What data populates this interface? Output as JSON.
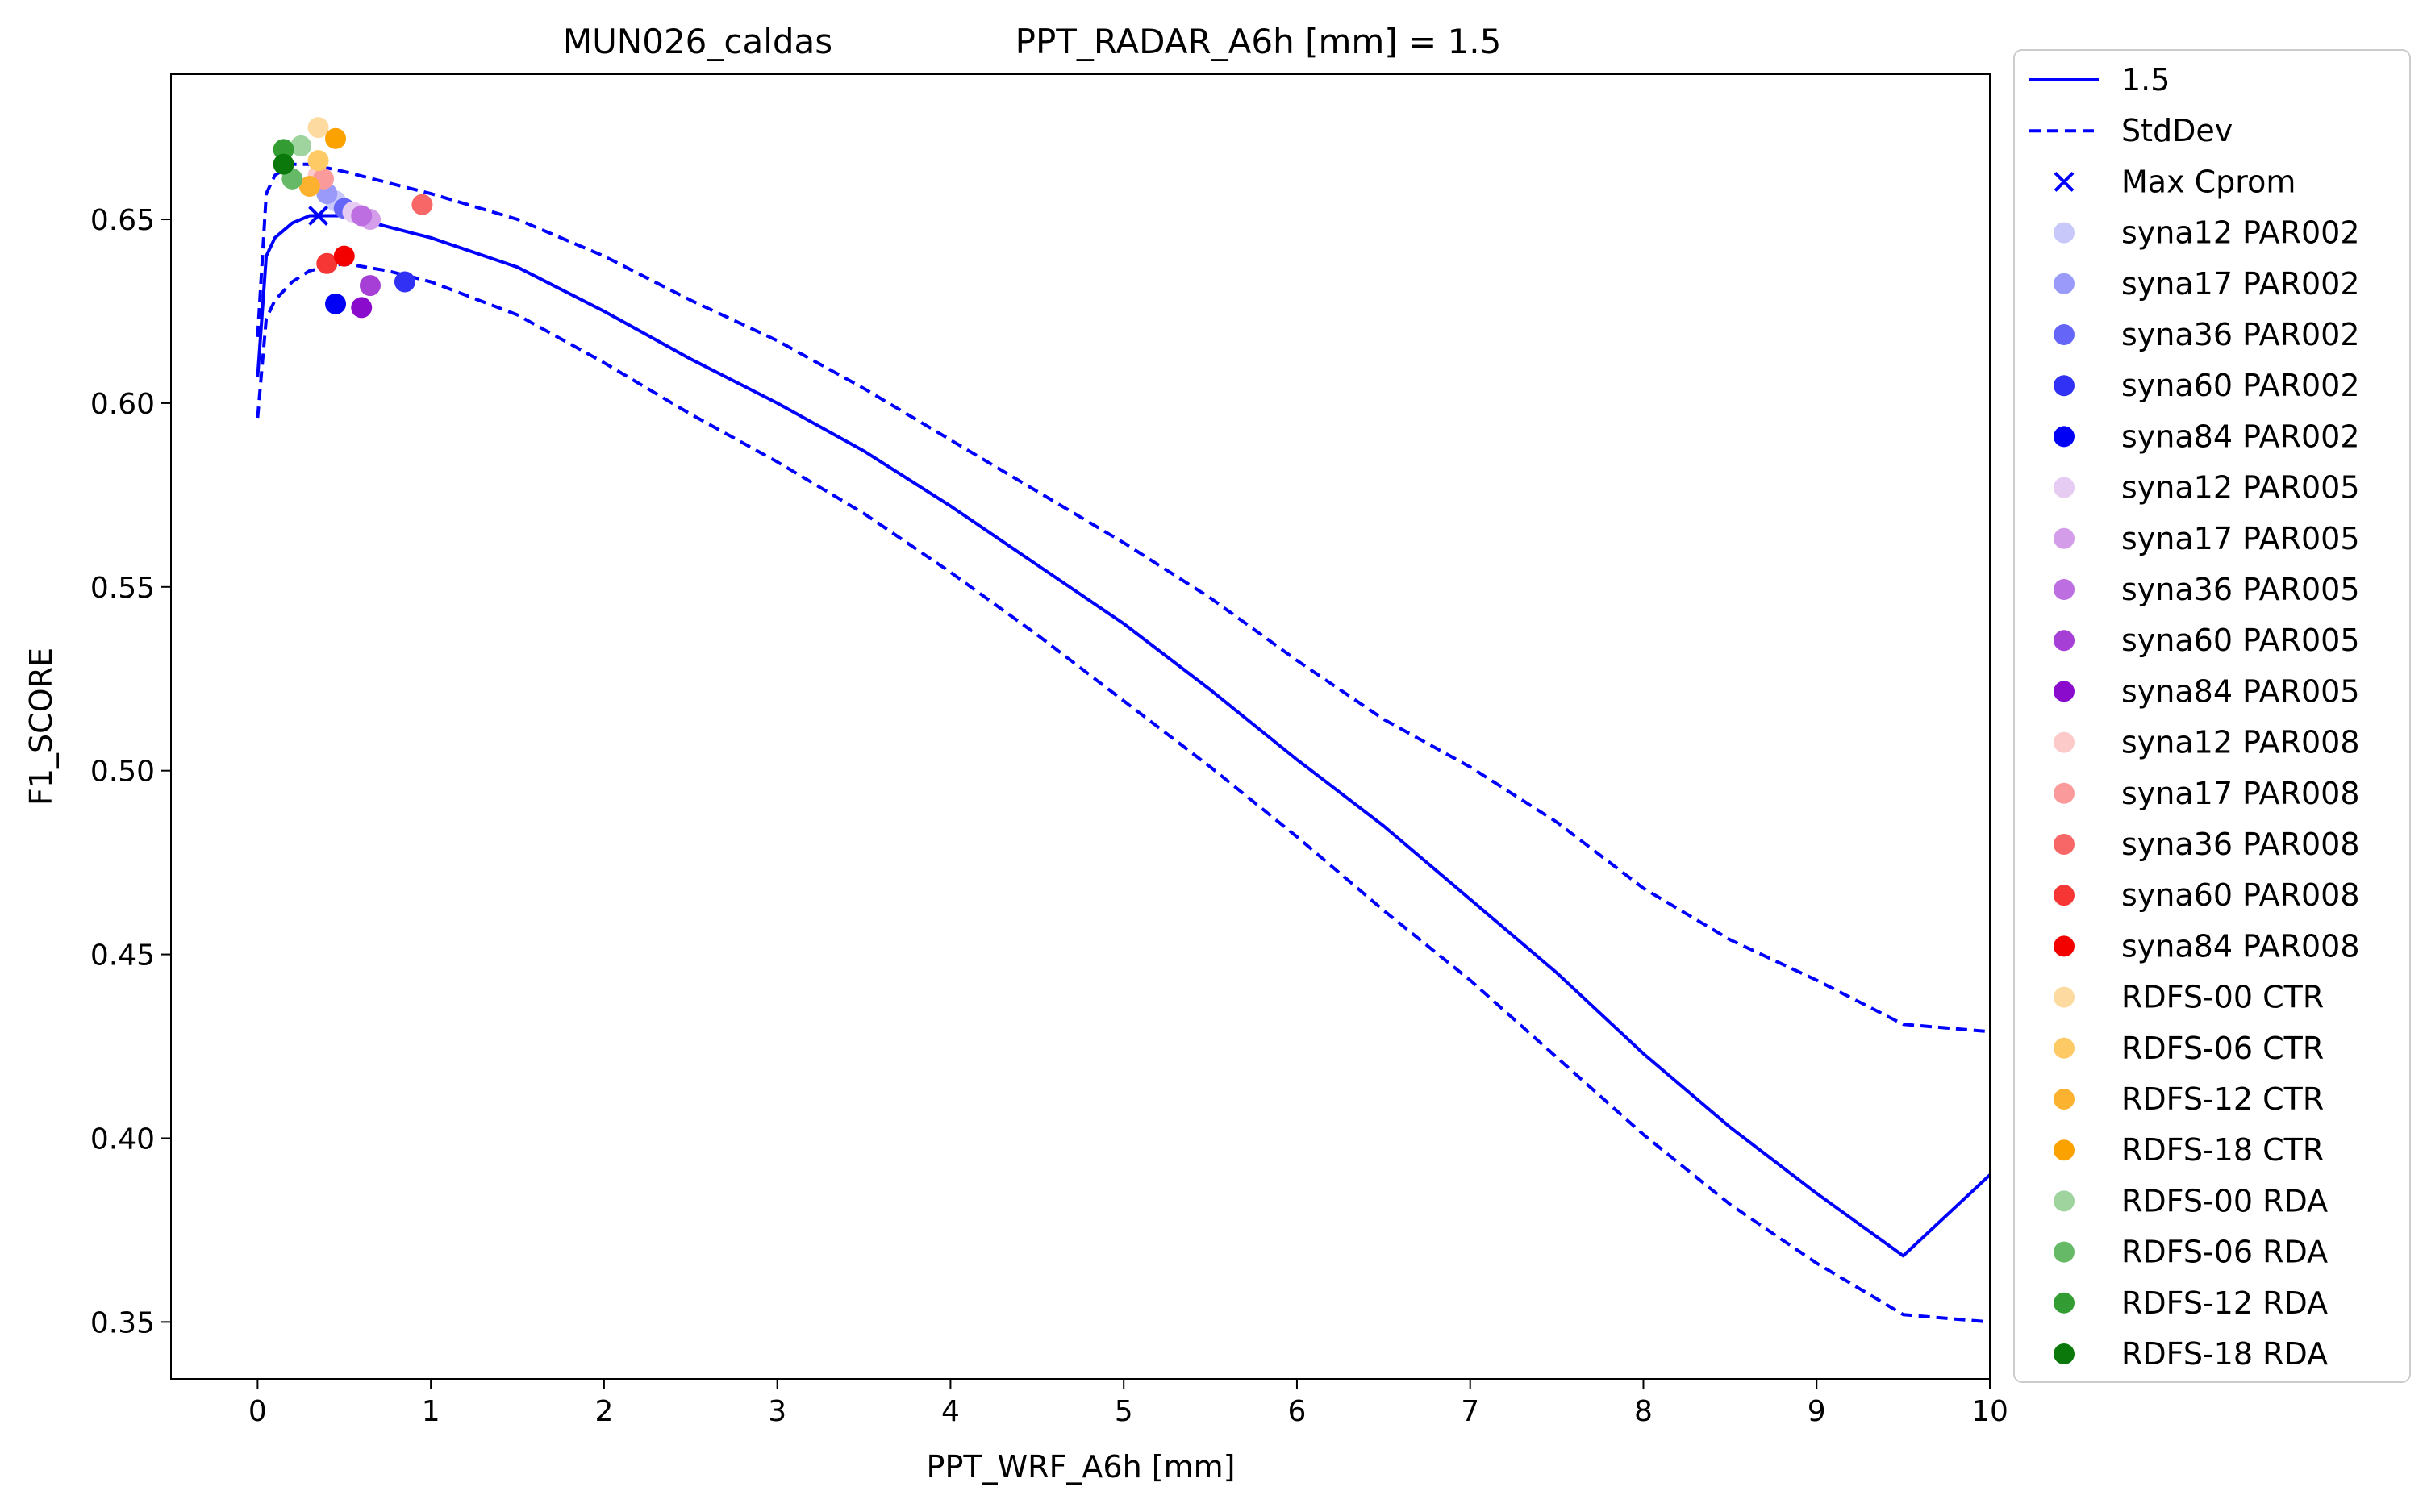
{
  "chart_data": {
    "type": "line",
    "title_left": "MUN026_caldas",
    "title_right": "PPT_RADAR_A6h [mm] = 1.5",
    "xlabel": "PPT_WRF_A6h [mm]",
    "ylabel": "F1_SCORE",
    "xlim": [
      -0.5,
      10
    ],
    "ylim": [
      0.3345,
      0.6895
    ],
    "xticks": [
      0,
      1,
      2,
      3,
      4,
      5,
      6,
      7,
      8,
      9,
      10
    ],
    "yticks": [
      0.35,
      0.4,
      0.45,
      0.5,
      0.55,
      0.6,
      0.65
    ],
    "ytick_labels": [
      "0.35",
      "0.40",
      "0.45",
      "0.50",
      "0.55",
      "0.60",
      "0.65"
    ],
    "grid": false,
    "legend_position": "outside-right",
    "line_color": "#0000ff",
    "series": [
      {
        "name": "1.5",
        "style": "solid",
        "x": [
          0.0,
          0.05,
          0.1,
          0.2,
          0.3,
          0.4,
          0.5,
          0.75,
          1.0,
          1.5,
          2.0,
          2.5,
          3.0,
          3.5,
          4.0,
          4.5,
          5.0,
          5.5,
          6.0,
          6.5,
          7.0,
          7.5,
          8.0,
          8.5,
          9.0,
          9.5,
          10.0
        ],
        "y": [
          0.607,
          0.64,
          0.645,
          0.649,
          0.651,
          0.651,
          0.651,
          0.648,
          0.645,
          0.637,
          0.625,
          0.612,
          0.6,
          0.587,
          0.572,
          0.556,
          0.54,
          0.522,
          0.503,
          0.485,
          0.465,
          0.445,
          0.423,
          0.403,
          0.385,
          0.368,
          0.39
        ]
      },
      {
        "name": "StdDev",
        "style": "dashed",
        "x": [
          0.0,
          0.05,
          0.1,
          0.2,
          0.3,
          0.4,
          0.5,
          0.75,
          1.0,
          1.5,
          2.0,
          2.5,
          3.0,
          3.5,
          4.0,
          4.5,
          5.0,
          5.5,
          6.0,
          6.5,
          7.0,
          7.5,
          8.0,
          8.5,
          9.0,
          9.5,
          10.0
        ],
        "y": [
          0.618,
          0.657,
          0.662,
          0.665,
          0.665,
          0.664,
          0.663,
          0.66,
          0.657,
          0.65,
          0.64,
          0.628,
          0.617,
          0.604,
          0.59,
          0.576,
          0.562,
          0.547,
          0.53,
          0.514,
          0.501,
          0.486,
          0.468,
          0.454,
          0.443,
          0.431,
          0.429
        ]
      },
      {
        "name": "",
        "style": "dashed",
        "x": [
          0.0,
          0.05,
          0.1,
          0.2,
          0.3,
          0.4,
          0.5,
          0.75,
          1.0,
          1.5,
          2.0,
          2.5,
          3.0,
          3.5,
          4.0,
          4.5,
          5.0,
          5.5,
          6.0,
          6.5,
          7.0,
          7.5,
          8.0,
          8.5,
          9.0,
          9.5,
          10.0
        ],
        "y": [
          0.596,
          0.623,
          0.628,
          0.633,
          0.636,
          0.637,
          0.638,
          0.636,
          0.633,
          0.624,
          0.611,
          0.597,
          0.584,
          0.57,
          0.554,
          0.537,
          0.519,
          0.501,
          0.482,
          0.462,
          0.443,
          0.422,
          0.401,
          0.382,
          0.366,
          0.352,
          0.35
        ]
      }
    ],
    "max_point": {
      "name": "Max Cprom",
      "x": 0.35,
      "y": 0.651
    },
    "scatter": [
      {
        "name": "syna12 PAR002",
        "color": "#c8c8fb",
        "x": 0.45,
        "y": 0.655
      },
      {
        "name": "syna17 PAR002",
        "color": "#9a9afa",
        "x": 0.4,
        "y": 0.657
      },
      {
        "name": "syna36 PAR002",
        "color": "#6565f8",
        "x": 0.5,
        "y": 0.653
      },
      {
        "name": "syna60 PAR002",
        "color": "#3131f6",
        "x": 0.85,
        "y": 0.633
      },
      {
        "name": "syna84 PAR002",
        "color": "#0000f5",
        "x": 0.45,
        "y": 0.627
      },
      {
        "name": "syna12 PAR005",
        "color": "#e6cbf3",
        "x": 0.55,
        "y": 0.652
      },
      {
        "name": "syna17 PAR005",
        "color": "#d39de9",
        "x": 0.65,
        "y": 0.65
      },
      {
        "name": "syna36 PAR005",
        "color": "#bd6ee0",
        "x": 0.6,
        "y": 0.651
      },
      {
        "name": "syna60 PAR005",
        "color": "#a63fd6",
        "x": 0.65,
        "y": 0.632
      },
      {
        "name": "syna84 PAR005",
        "color": "#8a0bcb",
        "x": 0.6,
        "y": 0.626
      },
      {
        "name": "syna12 PAR008",
        "color": "#fdcaca",
        "x": 0.35,
        "y": 0.662
      },
      {
        "name": "syna17 PAR008",
        "color": "#fb9a9a",
        "x": 0.38,
        "y": 0.661
      },
      {
        "name": "syna36 PAR008",
        "color": "#f86767",
        "x": 0.95,
        "y": 0.654
      },
      {
        "name": "syna60 PAR008",
        "color": "#f63535",
        "x": 0.4,
        "y": 0.638
      },
      {
        "name": "syna84 PAR008",
        "color": "#f30000",
        "x": 0.5,
        "y": 0.64
      },
      {
        "name": "RDFS-00 CTR",
        "color": "#fddba0",
        "x": 0.35,
        "y": 0.675
      },
      {
        "name": "RDFS-06 CTR",
        "color": "#fdca66",
        "x": 0.35,
        "y": 0.666
      },
      {
        "name": "RDFS-12 CTR",
        "color": "#fcb22e",
        "x": 0.3,
        "y": 0.659
      },
      {
        "name": "RDFS-18 CTR",
        "color": "#fba100",
        "x": 0.45,
        "y": 0.672
      },
      {
        "name": "RDFS-00 RDA",
        "color": "#9fd49f",
        "x": 0.25,
        "y": 0.67
      },
      {
        "name": "RDFS-06 RDA",
        "color": "#66b966",
        "x": 0.2,
        "y": 0.661
      },
      {
        "name": "RDFS-12 RDA",
        "color": "#339c33",
        "x": 0.15,
        "y": 0.669
      },
      {
        "name": "RDFS-18 RDA",
        "color": "#0a780a",
        "x": 0.15,
        "y": 0.665
      }
    ]
  }
}
